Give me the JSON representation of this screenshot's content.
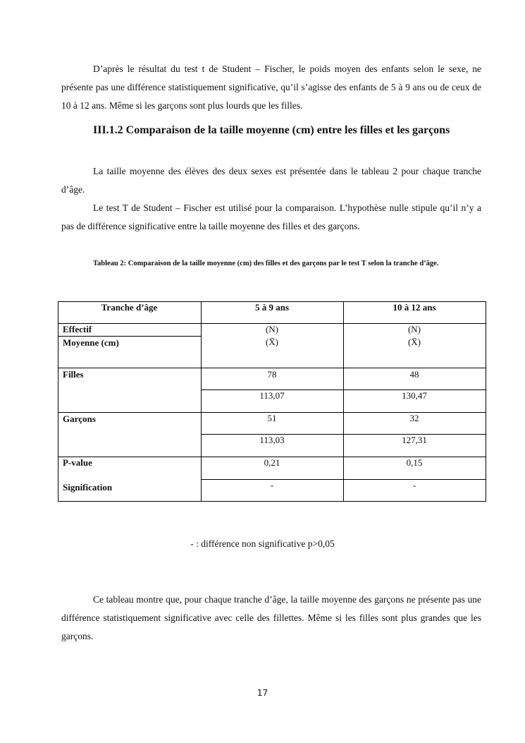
{
  "paragraphs": {
    "p1": "D’après le résultat du test t de Student – Fischer, le poids moyen des enfants selon le sexe, ne présente pas une différence statistiquement significative, qu’il s’agisse des enfants de 5 à 9 ans ou de ceux de 10 à 12 ans. Même si les garçons sont plus lourds que les filles.",
    "heading": "III.1.2 Comparaison de la taille moyenne (cm) entre les filles et les garçons",
    "p2": "La taille moyenne des élèves des deux sexes est présentée dans le tableau 2 pour chaque tranche d’âge.",
    "p3": "Le test T de Student – Fischer est utilisé pour la comparaison. L’hypothèse nulle stipule qu’il n’y a pas de différence significative entre la taille moyenne des filles et des garçons.",
    "caption": "Tableau 2: Comparaison de la taille moyenne (cm) des filles et des garçons par le test T selon la tranche d’âge.",
    "note": "- : différence non significative p>0,05",
    "p4": "Ce tableau montre que, pour chaque tranche d’âge, la taille moyenne des garçons ne présente pas une différence statistiquement significative avec celle des fillettes. Même si les filles sont plus grandes que les garçons."
  },
  "table": {
    "headers": [
      "Tranche d’âge",
      "5 à 9 ans",
      "10 à 12 ans"
    ],
    "row_labels": {
      "effectif": "Effectif",
      "moyenne": "Moyenne (cm)",
      "filles": "Filles",
      "garcons": "Garçons",
      "pvalue": "P-value",
      "signification": "Signification"
    },
    "legend": {
      "n": "(N)",
      "x": "(X̄)"
    },
    "filles": {
      "n": [
        "78",
        "48"
      ],
      "mean": [
        "113,07",
        "130,47"
      ]
    },
    "garcons": {
      "n": [
        "51",
        "32"
      ],
      "mean": [
        "113,03",
        "127,31"
      ]
    },
    "pvalue": [
      "0,21",
      "0,15"
    ],
    "signification": [
      "-",
      "-"
    ]
  },
  "page_number": "17"
}
